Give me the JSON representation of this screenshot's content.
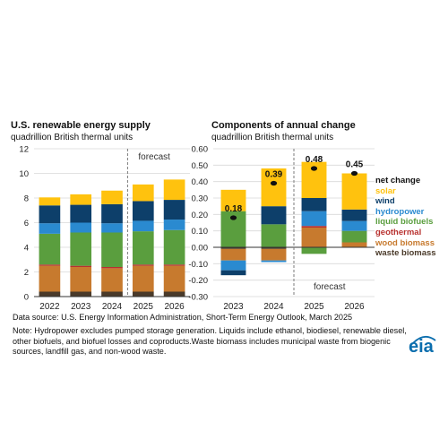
{
  "titles": {
    "left_title": "U.S. renewable energy supply",
    "left_subtitle": "quadrillion British thermal units",
    "right_title": "Components of annual change",
    "right_subtitle": "quadrillion British thermal units"
  },
  "forecast_label": "forecast",
  "source": "Data source: U.S. Energy Information Administration, Short-Term Energy Outlook, March 2025",
  "note": "Note: Hydropower excludes pumped storage generation. Liquids include ethanol, biodiesel, renewable diesel, other biofuels, and biofuel losses and coproducts.Waste biomass includes municipal waste from biogenic sources, landfill gas, and non-wood waste.",
  "logo_text": "eia",
  "colors": {
    "solar": "#FFC20E",
    "wind": "#0D3F6A",
    "hydropower": "#2A8AD0",
    "liquid_biofuels": "#5A9E3E",
    "geothermal": "#B8312F",
    "wood_biomass": "#C77A2E",
    "waste_biomass": "#4A3A2A",
    "net_change": "#111111"
  },
  "legend": [
    {
      "key": "net_change",
      "label": "net change"
    },
    {
      "key": "solar",
      "label": "solar"
    },
    {
      "key": "wind",
      "label": "wind"
    },
    {
      "key": "hydropower",
      "label": "hydropower"
    },
    {
      "key": "liquid_biofuels",
      "label": "liquid biofuels"
    },
    {
      "key": "geothermal",
      "label": "geothermal"
    },
    {
      "key": "wood_biomass",
      "label": "wood biomass"
    },
    {
      "key": "waste_biomass",
      "label": "waste biomass"
    }
  ],
  "chart_data": [
    {
      "type": "bar",
      "stacked": true,
      "title": "U.S. renewable energy supply",
      "ylabel": "quadrillion British thermal units",
      "categories": [
        "2022",
        "2023",
        "2024",
        "2025",
        "2026"
      ],
      "ylim": [
        0,
        12
      ],
      "yticks": [
        "0",
        "2",
        "4",
        "6",
        "8",
        "10",
        "12"
      ],
      "forecast_start": "2025",
      "series": [
        {
          "key": "waste_biomass",
          "values": [
            0.4,
            0.4,
            0.4,
            0.4,
            0.4
          ]
        },
        {
          "key": "wood_biomass",
          "values": [
            2.1,
            2.0,
            1.9,
            2.1,
            2.1
          ]
        },
        {
          "key": "geothermal",
          "values": [
            0.1,
            0.1,
            0.1,
            0.1,
            0.1
          ]
        },
        {
          "key": "liquid_biofuels",
          "values": [
            2.5,
            2.7,
            2.8,
            2.7,
            2.8
          ]
        },
        {
          "key": "hydropower",
          "values": [
            0.85,
            0.8,
            0.75,
            0.85,
            0.85
          ]
        },
        {
          "key": "wind",
          "values": [
            1.45,
            1.45,
            1.55,
            1.6,
            1.6
          ]
        },
        {
          "key": "solar",
          "values": [
            0.65,
            0.85,
            1.1,
            1.35,
            1.65
          ]
        }
      ]
    },
    {
      "type": "bar",
      "stacked": true,
      "title": "Components of annual change",
      "ylabel": "quadrillion British thermal units",
      "categories": [
        "2023",
        "2024",
        "2025",
        "2026"
      ],
      "ylim": [
        -0.3,
        0.6
      ],
      "yticks": [
        "-0.30",
        "-0.20",
        "-0.10",
        "0.00",
        "0.10",
        "0.20",
        "0.30",
        "0.40",
        "0.50",
        "0.60"
      ],
      "forecast_start": "2025",
      "net_change": [
        0.18,
        0.39,
        0.48,
        0.45
      ],
      "net_change_labels": [
        "0.18",
        "0.39",
        "0.48",
        "0.45"
      ],
      "series": [
        {
          "key": "waste_biomass",
          "values": [
            -0.01,
            -0.01,
            0.0,
            0.0
          ]
        },
        {
          "key": "wood_biomass",
          "values": [
            -0.07,
            -0.07,
            0.12,
            0.03
          ]
        },
        {
          "key": "geothermal",
          "values": [
            0.0,
            0.0,
            0.01,
            0.0
          ]
        },
        {
          "key": "liquid_biofuels",
          "values": [
            0.22,
            0.14,
            -0.04,
            0.07
          ]
        },
        {
          "key": "hydropower",
          "values": [
            -0.06,
            -0.01,
            0.09,
            0.06
          ]
        },
        {
          "key": "wind",
          "values": [
            -0.03,
            0.11,
            0.08,
            0.07
          ]
        },
        {
          "key": "solar",
          "values": [
            0.13,
            0.23,
            0.22,
            0.22
          ]
        }
      ]
    }
  ]
}
